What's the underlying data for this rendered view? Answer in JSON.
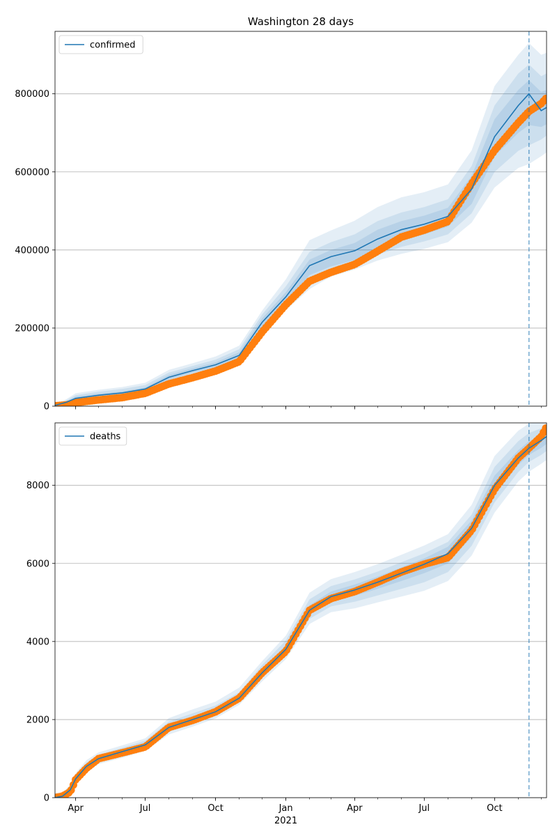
{
  "chart_data": [
    {
      "type": "line",
      "title": "Washington 28 days",
      "xlabel": "",
      "ylabel": "",
      "x_ticks": [
        "Apr",
        "Jul",
        "Oct",
        "Jan",
        "Apr",
        "Jul",
        "Oct"
      ],
      "x_ticks_year": [
        "",
        "",
        "",
        "2021",
        "",
        "",
        ""
      ],
      "y_ticks": [
        "0",
        "200000",
        "400000",
        "600000",
        "800000"
      ],
      "ylim": [
        0,
        960000
      ],
      "grid": "horizontal",
      "legend_placement": "top-left",
      "legend": [
        "confirmed"
      ],
      "forecast_start": "2021-11-15",
      "series": [
        {
          "name": "confirmed",
          "kind": "model",
          "x": [
            "2020-03-05",
            "2020-03-20",
            "2020-04-01",
            "2020-05-01",
            "2020-06-01",
            "2020-07-01",
            "2020-08-01",
            "2020-09-01",
            "2020-10-01",
            "2020-11-01",
            "2020-12-01",
            "2021-01-01",
            "2021-02-01",
            "2021-03-01",
            "2021-04-01",
            "2021-05-01",
            "2021-06-01",
            "2021-07-01",
            "2021-08-01",
            "2021-09-01",
            "2021-10-01",
            "2021-11-01",
            "2021-11-15",
            "2021-12-01",
            "2021-12-08"
          ],
          "values": [
            2000,
            10000,
            20000,
            28000,
            34000,
            44000,
            74000,
            91000,
            106000,
            130000,
            215000,
            280000,
            360000,
            383000,
            398000,
            428000,
            452000,
            466000,
            486000,
            556000,
            690000,
            770000,
            800000,
            757000,
            765000
          ],
          "bands": [
            {
              "lower": [
                0,
                4000,
                10000,
                18000,
                24000,
                34000,
                60000,
                78000,
                92000,
                114000,
                192000,
                246000,
                300000,
                332000,
                350000,
                373000,
                390000,
                403000,
                420000,
                470000,
                560000,
                610000,
                620000,
                640000,
                650000
              ],
              "upper": [
                4000,
                18000,
                33000,
                42000,
                49000,
                60000,
                93000,
                110000,
                127000,
                155000,
                245000,
                325000,
                425000,
                450000,
                475000,
                510000,
                535000,
                548000,
                568000,
                655000,
                820000,
                900000,
                930000,
                900000,
                905000
              ]
            },
            {
              "lower": [
                0,
                5000,
                13000,
                21000,
                27000,
                37000,
                64000,
                82000,
                96000,
                118000,
                197000,
                256000,
                318000,
                345000,
                362000,
                388000,
                408000,
                422000,
                440000,
                494000,
                600000,
                654000,
                668000,
                683000,
                693000
              ],
              "upper": [
                3500,
                15000,
                28000,
                37000,
                44000,
                54000,
                86000,
                103000,
                119000,
                146000,
                235000,
                307000,
                395000,
                420000,
                440000,
                474000,
                496000,
                510000,
                530000,
                615000,
                770000,
                852000,
                875000,
                845000,
                852000
              ]
            },
            {
              "lower": [
                500,
                7000,
                16000,
                24000,
                30000,
                40000,
                68000,
                86000,
                100000,
                122000,
                203000,
                266000,
                336000,
                358000,
                374000,
                403000,
                426000,
                440000,
                460000,
                518000,
                640000,
                700000,
                720000,
                715000,
                722000
              ],
              "upper": [
                3000,
                12000,
                24000,
                32000,
                38000,
                48000,
                80000,
                97000,
                112000,
                138000,
                225000,
                292000,
                375000,
                400000,
                418000,
                452000,
                474000,
                488000,
                508000,
                590000,
                735000,
                810000,
                835000,
                805000,
                810000
              ]
            }
          ]
        },
        {
          "name": "confirmed observed",
          "kind": "observed",
          "x": [
            "2020-03-05",
            "2020-03-20",
            "2020-04-01",
            "2020-05-01",
            "2020-06-01",
            "2020-07-01",
            "2020-08-01",
            "2020-09-01",
            "2020-10-01",
            "2020-11-01",
            "2020-12-01",
            "2021-01-01",
            "2021-02-01",
            "2021-03-01",
            "2021-04-01",
            "2021-05-01",
            "2021-06-01",
            "2021-07-01",
            "2021-08-01",
            "2021-09-01",
            "2021-10-01",
            "2021-11-01",
            "2021-11-15",
            "2021-12-01",
            "2021-12-08"
          ],
          "values": [
            1000,
            3000,
            9000,
            16000,
            22000,
            33000,
            57000,
            73000,
            90000,
            114000,
            190000,
            260000,
            320000,
            343000,
            363000,
            397000,
            433000,
            451000,
            473000,
            570000,
            655000,
            726000,
            755000,
            775000,
            790000
          ]
        }
      ]
    },
    {
      "type": "line",
      "title": "",
      "xlabel": "",
      "ylabel": "",
      "x_ticks": [
        "Apr",
        "Jul",
        "Oct",
        "Jan",
        "Apr",
        "Jul",
        "Oct"
      ],
      "x_ticks_year": [
        "",
        "",
        "",
        "2021",
        "",
        "",
        ""
      ],
      "y_ticks": [
        "0",
        "2000",
        "4000",
        "6000",
        "8000"
      ],
      "ylim": [
        0,
        9600
      ],
      "grid": "horizontal",
      "legend_placement": "top-left",
      "legend": [
        "deaths"
      ],
      "forecast_start": "2021-11-15",
      "series": [
        {
          "name": "deaths",
          "kind": "model",
          "x": [
            "2020-03-05",
            "2020-03-15",
            "2020-03-25",
            "2020-04-01",
            "2020-04-15",
            "2020-05-01",
            "2020-06-01",
            "2020-07-01",
            "2020-08-01",
            "2020-09-01",
            "2020-10-01",
            "2020-11-01",
            "2020-12-01",
            "2021-01-01",
            "2021-02-01",
            "2021-03-01",
            "2021-04-01",
            "2021-05-01",
            "2021-06-01",
            "2021-07-01",
            "2021-08-01",
            "2021-09-01",
            "2021-10-01",
            "2021-11-01",
            "2021-11-15",
            "2021-12-01",
            "2021-12-08"
          ],
          "values": [
            0,
            40,
            200,
            480,
            800,
            1000,
            1180,
            1350,
            1800,
            2000,
            2200,
            2550,
            3200,
            3800,
            4800,
            5150,
            5320,
            5520,
            5750,
            5980,
            6250,
            6900,
            8000,
            8700,
            8950,
            9150,
            9250
          ],
          "bands": [
            {
              "lower": [
                0,
                0,
                120,
                380,
                660,
                860,
                1020,
                1200,
                1620,
                1820,
                2030,
                2380,
                2980,
                3550,
                4450,
                4750,
                4850,
                5000,
                5150,
                5300,
                5550,
                6200,
                7300,
                8100,
                8350,
                8550,
                8650
              ],
              "upper": [
                120,
                140,
                330,
                630,
                960,
                1160,
                1340,
                1520,
                2040,
                2260,
                2460,
                2820,
                3500,
                4150,
                5250,
                5600,
                5780,
                5980,
                6220,
                6460,
                6750,
                7500,
                8750,
                9400,
                9580,
                9650,
                9650
              ]
            },
            {
              "lower": [
                0,
                10,
                150,
                420,
                710,
                910,
                1080,
                1250,
                1690,
                1890,
                2090,
                2450,
                3060,
                3640,
                4580,
                4900,
                5020,
                5180,
                5350,
                5520,
                5780,
                6450,
                7560,
                8340,
                8600,
                8780,
                8880
              ],
              "upper": [
                80,
                90,
                280,
                570,
                900,
                1100,
                1280,
                1460,
                1950,
                2160,
                2360,
                2700,
                3400,
                4030,
                5080,
                5420,
                5590,
                5790,
                6030,
                6260,
                6550,
                7250,
                8470,
                9130,
                9340,
                9460,
                9530
              ]
            },
            {
              "lower": [
                0,
                20,
                170,
                450,
                750,
                950,
                1130,
                1300,
                1740,
                1940,
                2140,
                2500,
                3130,
                3720,
                4690,
                5030,
                5170,
                5350,
                5550,
                5750,
                6000,
                6680,
                7780,
                8520,
                8780,
                8960,
                9060
              ],
              "upper": [
                50,
                60,
                240,
                520,
                860,
                1060,
                1240,
                1410,
                1870,
                2080,
                2280,
                2620,
                3300,
                3900,
                4930,
                5280,
                5460,
                5660,
                5900,
                6130,
                6430,
                7100,
                8250,
                8900,
                9130,
                9280,
                9360
              ]
            }
          ]
        },
        {
          "name": "deaths observed",
          "kind": "observed",
          "x": [
            "2020-03-05",
            "2020-03-15",
            "2020-03-25",
            "2020-04-01",
            "2020-04-15",
            "2020-05-01",
            "2020-06-01",
            "2020-07-01",
            "2020-08-01",
            "2020-09-01",
            "2020-10-01",
            "2020-11-01",
            "2020-12-01",
            "2021-01-01",
            "2021-02-01",
            "2021-03-01",
            "2021-04-01",
            "2021-05-01",
            "2021-06-01",
            "2021-07-01",
            "2021-08-01",
            "2021-09-01",
            "2021-10-01",
            "2021-11-01",
            "2021-11-15",
            "2021-12-01",
            "2021-12-08"
          ],
          "values": [
            0,
            40,
            150,
            460,
            750,
            1000,
            1150,
            1300,
            1800,
            1980,
            2200,
            2550,
            3200,
            3750,
            4800,
            5100,
            5280,
            5520,
            5780,
            5980,
            6150,
            6850,
            7900,
            8700,
            8950,
            9250,
            9500
          ]
        }
      ]
    }
  ]
}
